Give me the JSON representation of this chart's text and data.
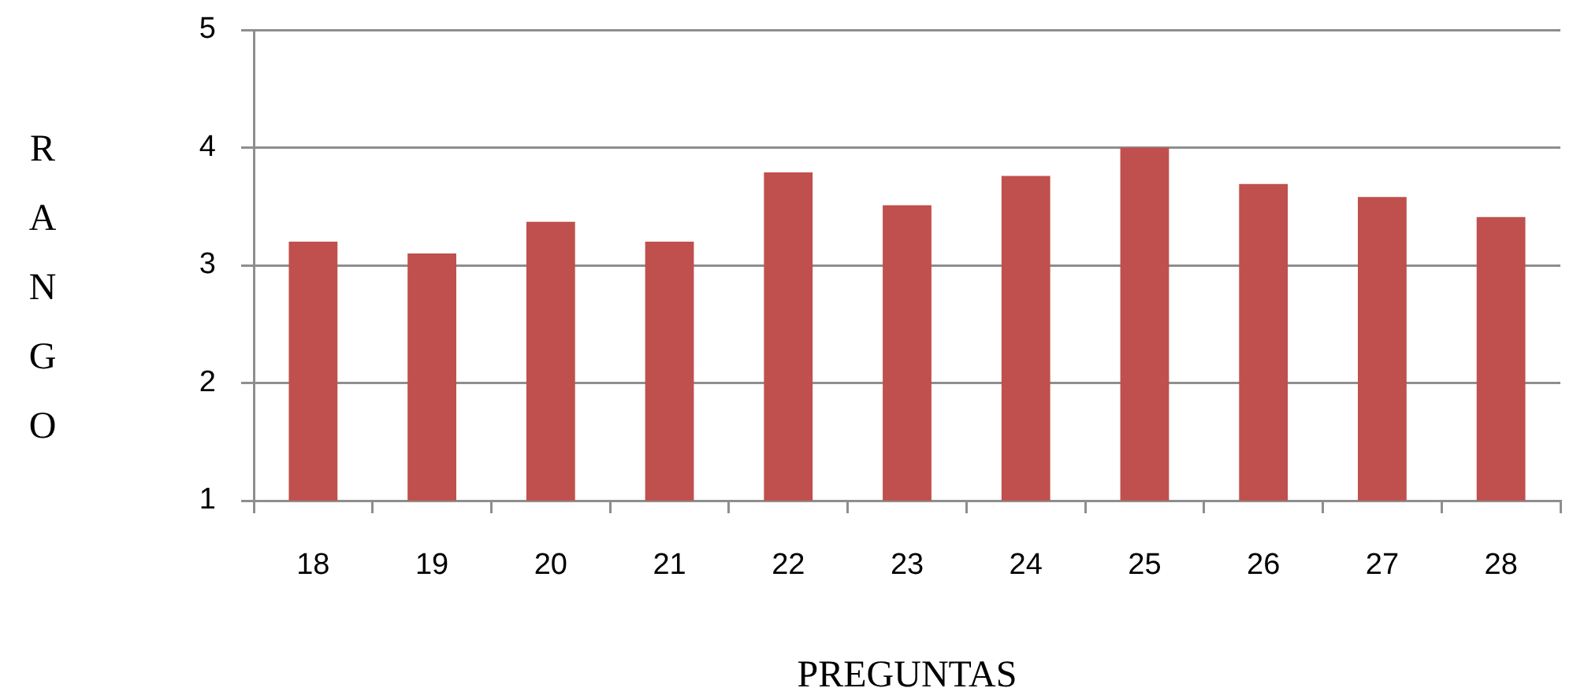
{
  "chart_data": {
    "type": "bar",
    "xlabel": "PREGUNTAS",
    "ylabel": "RANGO",
    "categories": [
      "18",
      "19",
      "20",
      "21",
      "22",
      "23",
      "24",
      "25",
      "26",
      "27",
      "28"
    ],
    "values": [
      3.2,
      3.1,
      3.37,
      3.2,
      3.79,
      3.51,
      3.76,
      4.0,
      3.69,
      3.58,
      3.41
    ],
    "color": "#c0504d",
    "ylim": [
      1,
      5
    ],
    "yticks": [
      1,
      2,
      3,
      4,
      5
    ],
    "grid": "y"
  }
}
